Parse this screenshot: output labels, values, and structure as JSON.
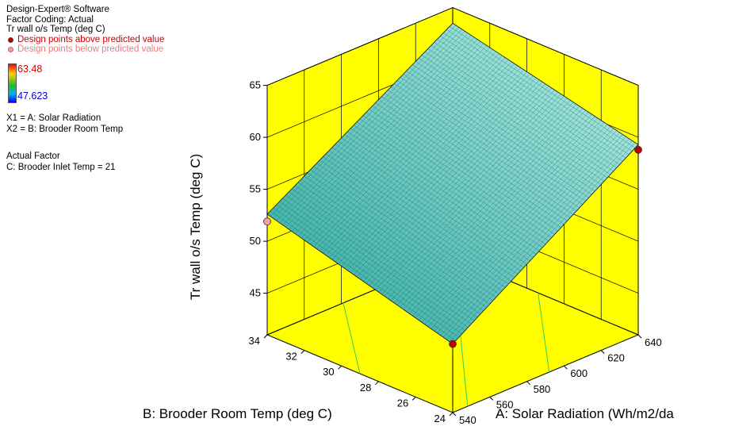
{
  "header": {
    "software": "Design-Expert® Software",
    "factor_coding": "Factor Coding: Actual",
    "response": "Tr wall o/s Temp (deg C)",
    "legend_above": "Design points above predicted value",
    "legend_below": "Design points below predicted value",
    "scale_max": "63.48",
    "scale_min": "47.623",
    "x1": "X1 = A: Solar Radiation",
    "x2": "X2 = B: Brooder Room Temp",
    "actual_factor_title": "Actual Factor",
    "actual_factor_value": "C: Brooder Inlet Temp = 21"
  },
  "colors": {
    "wall": "#ffff00",
    "surface_low": "#2aa8a0",
    "surface_high": "#b8f0e8",
    "above_point": "#c00000",
    "below_point": "#f0a0a0",
    "contour": "#30d060"
  },
  "chart_data": {
    "type": "surface3d",
    "z_axis": {
      "label": "Tr wall o/s Temp (deg C)",
      "ticks": [
        "45",
        "50",
        "55",
        "60",
        "65"
      ],
      "range": [
        41,
        65
      ]
    },
    "a_axis": {
      "label": "A: Solar Radiation (Wh/m2/da",
      "ticks": [
        "540",
        "560",
        "580",
        "600",
        "620",
        "640"
      ],
      "range": [
        540,
        640
      ]
    },
    "b_axis": {
      "label": "B: Brooder Room Temp (deg C)",
      "ticks": [
        "24",
        "26",
        "28",
        "30",
        "32",
        "34"
      ],
      "range": [
        24,
        34
      ]
    },
    "surface_corners": [
      {
        "a": 540,
        "b": 24,
        "z": 47.6
      },
      {
        "a": 640,
        "b": 24,
        "z": 59.3
      },
      {
        "a": 540,
        "b": 34,
        "z": 52.6
      },
      {
        "a": 640,
        "b": 34,
        "z": 63.5
      }
    ],
    "design_points": [
      {
        "a": 540,
        "b": 24,
        "z": 47.6,
        "type": "above"
      },
      {
        "a": 640,
        "b": 24,
        "z": 58.8,
        "type": "above"
      },
      {
        "a": 540,
        "b": 34,
        "z": 51.9,
        "type": "below"
      }
    ]
  }
}
